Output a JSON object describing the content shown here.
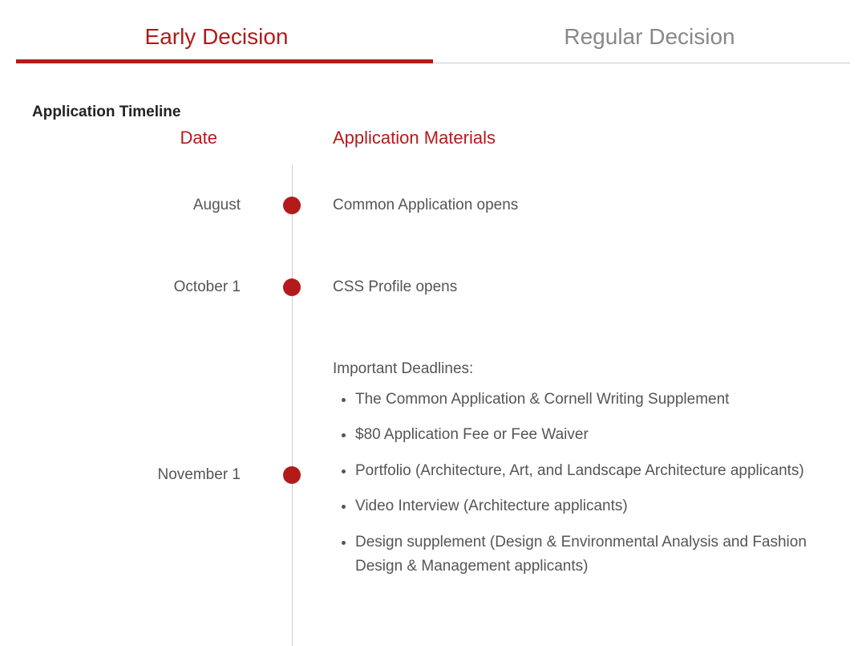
{
  "tabs": {
    "items": [
      {
        "label": "Early Decision",
        "active": true
      },
      {
        "label": "Regular Decision",
        "active": false
      }
    ]
  },
  "section_title": "Application Timeline",
  "columns": {
    "date": "Date",
    "materials": "Application Materials"
  },
  "timeline": [
    {
      "date": "August",
      "text": "Common Application opens"
    },
    {
      "date": "October 1",
      "text": "CSS Profile opens"
    },
    {
      "date": "November 1",
      "lead": "Important Deadlines:",
      "items": [
        "The Common Application & Cornell Writing Supplement",
        "$80 Application Fee or Fee Waiver",
        "Portfolio (Architecture, Art, and Landscape Architecture applicants)",
        "Video Interview (Architecture applicants)",
        "Design supplement (Design & Environmental Analysis and Fashion Design & Management applicants)"
      ]
    }
  ],
  "colors": {
    "accent": "#b31b1b",
    "muted": "#888888",
    "text": "#555555",
    "heading": "#222222",
    "line": "#cccccc",
    "background": "#ffffff"
  },
  "typography": {
    "tab_fontsize": 28,
    "header_fontsize": 22,
    "body_fontsize": 19,
    "section_title_fontsize": 19
  }
}
